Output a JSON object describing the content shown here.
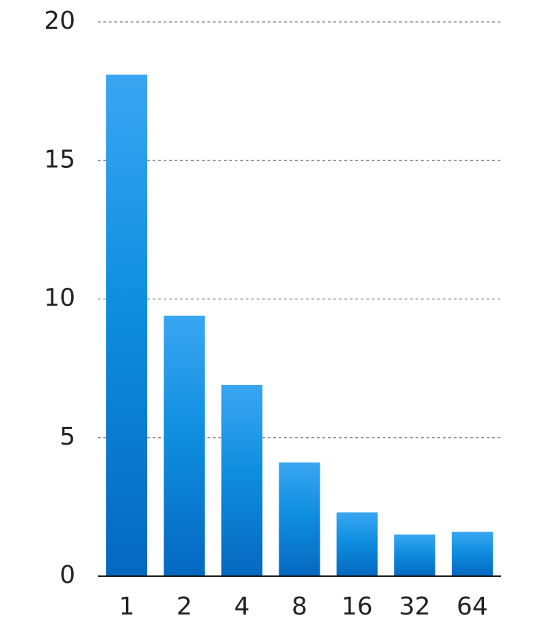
{
  "chart_data": {
    "type": "bar",
    "title": "",
    "xlabel": "",
    "ylabel": "",
    "categories": [
      "1",
      "2",
      "4",
      "8",
      "16",
      "32",
      "64"
    ],
    "values": [
      18.1,
      9.4,
      6.9,
      4.1,
      2.3,
      1.5,
      1.6
    ],
    "ylim": [
      0,
      20
    ],
    "yticks": [
      0,
      5,
      10,
      15,
      20
    ],
    "ytick_labels": [
      "0",
      "5",
      "10",
      "15",
      "20"
    ],
    "grid": true,
    "legend": "none",
    "colors": {
      "bar_top": "#3AA6F2",
      "bar_mid": "#0F8EE0",
      "bar_bottom": "#0568C0"
    }
  }
}
